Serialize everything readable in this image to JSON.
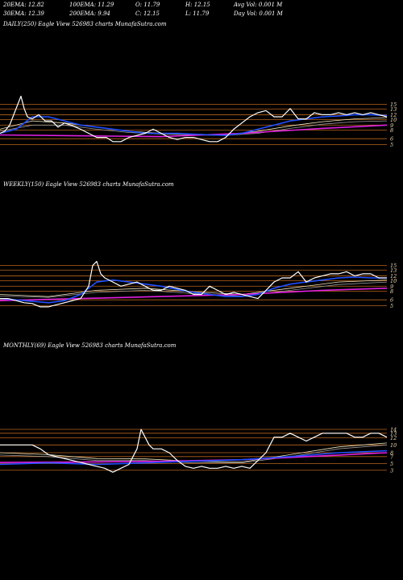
{
  "stats": {
    "ema20": "20EMA: 12.82",
    "ema100": "100EMA: 11.29",
    "open": "O: 11.79",
    "high": "H: 12.15",
    "avg_vol": "Avg Vol: 0.001 M",
    "ema30": "30EMA: 12.39",
    "ema200": "200EMA: 9.94",
    "close": "C: 12.15",
    "low": "L: 11.79",
    "day_vol": "Day Vol: 0.001 M"
  },
  "colors": {
    "price": "#ffffff",
    "ema_blue": "#1f4fff",
    "ema_magenta": "#e020e0",
    "ema_cream": "#f2e8c0",
    "ema_gray": "#9a9a9a",
    "level": "#b8641e",
    "label": "#f0ddb8"
  },
  "chart_data": [
    {
      "type": "line",
      "caption": "DAILY(250) Eagle   View  526983 charts MunafaSutra.com",
      "level_labels": [
        "15",
        "13",
        "12",
        "10",
        "9",
        "8",
        "6",
        "5"
      ],
      "levels": [
        15,
        13.9,
        12.5,
        11.3,
        10,
        8.8,
        6.7,
        5.3
      ],
      "ylim": [
        4,
        20
      ],
      "series": [
        {
          "role": "price",
          "x": [
            0,
            6,
            12,
            18,
            22,
            26,
            30,
            34,
            40,
            48,
            56,
            64,
            72,
            80,
            88,
            100,
            110,
            120,
            132,
            140,
            150,
            160,
            170,
            180,
            190,
            200,
            210,
            220,
            230,
            240,
            250,
            260,
            270,
            280,
            290,
            300,
            310,
            320,
            330,
            340,
            350,
            360,
            370,
            380,
            390,
            400,
            410,
            420,
            430,
            440,
            450,
            460,
            470,
            480
          ],
          "values": [
            8,
            8.5,
            10,
            13,
            15,
            17,
            14,
            12,
            11.5,
            12.5,
            11,
            11,
            9.5,
            10.5,
            10,
            9,
            8,
            7,
            7,
            6,
            6,
            7,
            7.5,
            8,
            9,
            8,
            7,
            6.5,
            7,
            7,
            6.5,
            6,
            6,
            7,
            9,
            10.5,
            12,
            13,
            13.5,
            12,
            12,
            14,
            11.5,
            11.5,
            13,
            12.5,
            12.5,
            13,
            12.5,
            13,
            12.5,
            13,
            12.5,
            12
          ]
        },
        {
          "role": "ema_blue",
          "x": [
            0,
            20,
            40,
            60,
            80,
            100,
            120,
            140,
            160,
            180,
            200,
            220,
            240,
            260,
            280,
            300,
            320,
            340,
            360,
            380,
            400,
            420,
            440,
            460,
            480
          ],
          "values": [
            8,
            9,
            12,
            12,
            11,
            10,
            9.5,
            9,
            8.5,
            8,
            8,
            8,
            7.8,
            7.6,
            7.5,
            8,
            9,
            10,
            11,
            11.5,
            12,
            12.2,
            12.5,
            12.5,
            12.3
          ]
        },
        {
          "role": "ema_cream",
          "x": [
            0,
            40,
            80,
            120,
            160,
            200,
            240,
            280,
            320,
            360,
            400,
            440,
            480
          ],
          "values": [
            9,
            11,
            10.5,
            9.5,
            8.5,
            8,
            7.8,
            7.6,
            8.5,
            9.8,
            10.8,
            11.5,
            11.8
          ]
        },
        {
          "role": "ema_gray",
          "x": [
            0,
            40,
            80,
            120,
            160,
            200,
            240,
            280,
            320,
            360,
            400,
            440,
            480
          ],
          "values": [
            8.5,
            10,
            10,
            9,
            8.2,
            7.8,
            7.6,
            7.5,
            8,
            9.2,
            10.2,
            10.8,
            11
          ]
        },
        {
          "role": "ema_magenta",
          "x": [
            0,
            100,
            200,
            300,
            400,
            480
          ],
          "values": [
            7.6,
            7.4,
            7.2,
            8,
            9.2,
            10
          ]
        }
      ]
    },
    {
      "type": "line",
      "caption": "WEEKLY(150) Eagle   View  526983 charts MunafaSutra.com",
      "level_labels": [
        "15",
        "13",
        "12",
        "10",
        "9",
        "8",
        "6",
        "5"
      ],
      "levels": [
        15,
        13.9,
        12.5,
        11.3,
        10,
        8.8,
        6.7,
        5.3
      ],
      "ylim": [
        4,
        20
      ],
      "series": [
        {
          "role": "price",
          "x": [
            0,
            10,
            20,
            30,
            40,
            50,
            60,
            70,
            80,
            90,
            100,
            110,
            115,
            120,
            125,
            130,
            140,
            150,
            160,
            170,
            180,
            190,
            200,
            210,
            220,
            230,
            240,
            250,
            260,
            270,
            280,
            290,
            300,
            310,
            320,
            330,
            340,
            350,
            360,
            370,
            380,
            390,
            400,
            410,
            420,
            430,
            440,
            450,
            460,
            470,
            480
          ],
          "values": [
            7,
            7,
            6.5,
            6,
            5.8,
            5,
            5,
            5.5,
            6,
            6.5,
            7,
            10,
            15,
            16,
            13,
            12,
            11,
            10,
            10.5,
            11,
            10,
            9,
            9,
            10,
            9.5,
            9,
            8,
            8,
            10,
            9,
            8,
            8.5,
            8,
            7.5,
            7,
            9,
            11,
            12,
            12,
            13.5,
            11,
            12,
            12.5,
            13,
            13,
            13.5,
            12.5,
            13,
            13,
            12,
            12
          ]
        },
        {
          "role": "ema_blue",
          "x": [
            0,
            30,
            60,
            80,
            100,
            120,
            140,
            160,
            180,
            200,
            220,
            240,
            260,
            280,
            300,
            320,
            340,
            360,
            380,
            400,
            420,
            440,
            460,
            480
          ],
          "values": [
            7,
            6.5,
            6,
            6.5,
            8,
            11,
            11.5,
            11,
            10.5,
            10,
            9.2,
            8.5,
            8,
            7.5,
            7.5,
            8,
            9.5,
            10.5,
            11,
            11.5,
            12,
            12.2,
            12,
            12
          ]
        },
        {
          "role": "ema_cream",
          "x": [
            0,
            60,
            120,
            180,
            240,
            300,
            360,
            420,
            480
          ],
          "values": [
            8,
            7.5,
            9,
            9.5,
            8.6,
            8,
            9.5,
            11,
            11.5
          ]
        },
        {
          "role": "ema_gray",
          "x": [
            0,
            60,
            120,
            180,
            240,
            300,
            360,
            420,
            480
          ],
          "values": [
            7.6,
            7.3,
            8.5,
            9,
            8.2,
            7.6,
            9,
            10.4,
            11
          ]
        },
        {
          "role": "ema_magenta",
          "x": [
            0,
            100,
            200,
            300,
            400,
            480
          ],
          "values": [
            6.5,
            7,
            7.5,
            8,
            9,
            9.5
          ]
        }
      ]
    },
    {
      "type": "line",
      "caption": "MONTHLY(69) Eagle   View  526983 charts MunafaSutra.com",
      "level_labels": [
        "14",
        "13",
        "12",
        "10",
        "8",
        "7",
        "5",
        "3"
      ],
      "levels": [
        14,
        13,
        11.8,
        10,
        8,
        7,
        5.2,
        3.5
      ],
      "ylim": [
        2,
        20
      ],
      "series": [
        {
          "role": "price",
          "x": [
            0,
            10,
            20,
            30,
            40,
            50,
            60,
            70,
            80,
            90,
            100,
            110,
            120,
            130,
            140,
            150,
            160,
            170,
            175,
            180,
            185,
            190,
            200,
            210,
            220,
            230,
            240,
            250,
            260,
            270,
            280,
            290,
            300,
            310,
            320,
            330,
            340,
            350,
            360,
            370,
            380,
            390,
            400,
            410,
            420,
            430,
            440,
            450,
            460,
            470,
            480
          ],
          "values": [
            10,
            10,
            10,
            10,
            10,
            9,
            7.5,
            7,
            6.5,
            6,
            5.5,
            5,
            4.5,
            4,
            3,
            4,
            5,
            9,
            14,
            12,
            10,
            9,
            9,
            8,
            6,
            4.5,
            4,
            4.5,
            4,
            4,
            4.5,
            4,
            4.5,
            4,
            6,
            8,
            12,
            12,
            13,
            12,
            11,
            12,
            13,
            13,
            13,
            13,
            12,
            12,
            13,
            13,
            12
          ]
        },
        {
          "role": "ema_blue",
          "x": [
            0,
            60,
            120,
            180,
            240,
            300,
            360,
            420,
            480
          ],
          "values": [
            5,
            5.4,
            5,
            5.4,
            5.8,
            6.2,
            7,
            8,
            8.5
          ]
        },
        {
          "role": "ema_cream",
          "x": [
            0,
            60,
            120,
            180,
            240,
            300,
            360,
            420,
            480
          ],
          "values": [
            8,
            7.5,
            6.5,
            6.4,
            5.8,
            5.6,
            7.5,
            9.5,
            10.5
          ]
        },
        {
          "role": "ema_gray",
          "x": [
            0,
            60,
            120,
            180,
            240,
            300,
            360,
            420,
            480
          ],
          "values": [
            7.4,
            7,
            6,
            6,
            5.4,
            5.4,
            7,
            9,
            10
          ]
        },
        {
          "role": "ema_magenta",
          "x": [
            0,
            100,
            200,
            300,
            400,
            480
          ],
          "values": [
            5.5,
            5.6,
            5.8,
            6.2,
            7.2,
            8
          ]
        }
      ]
    }
  ]
}
